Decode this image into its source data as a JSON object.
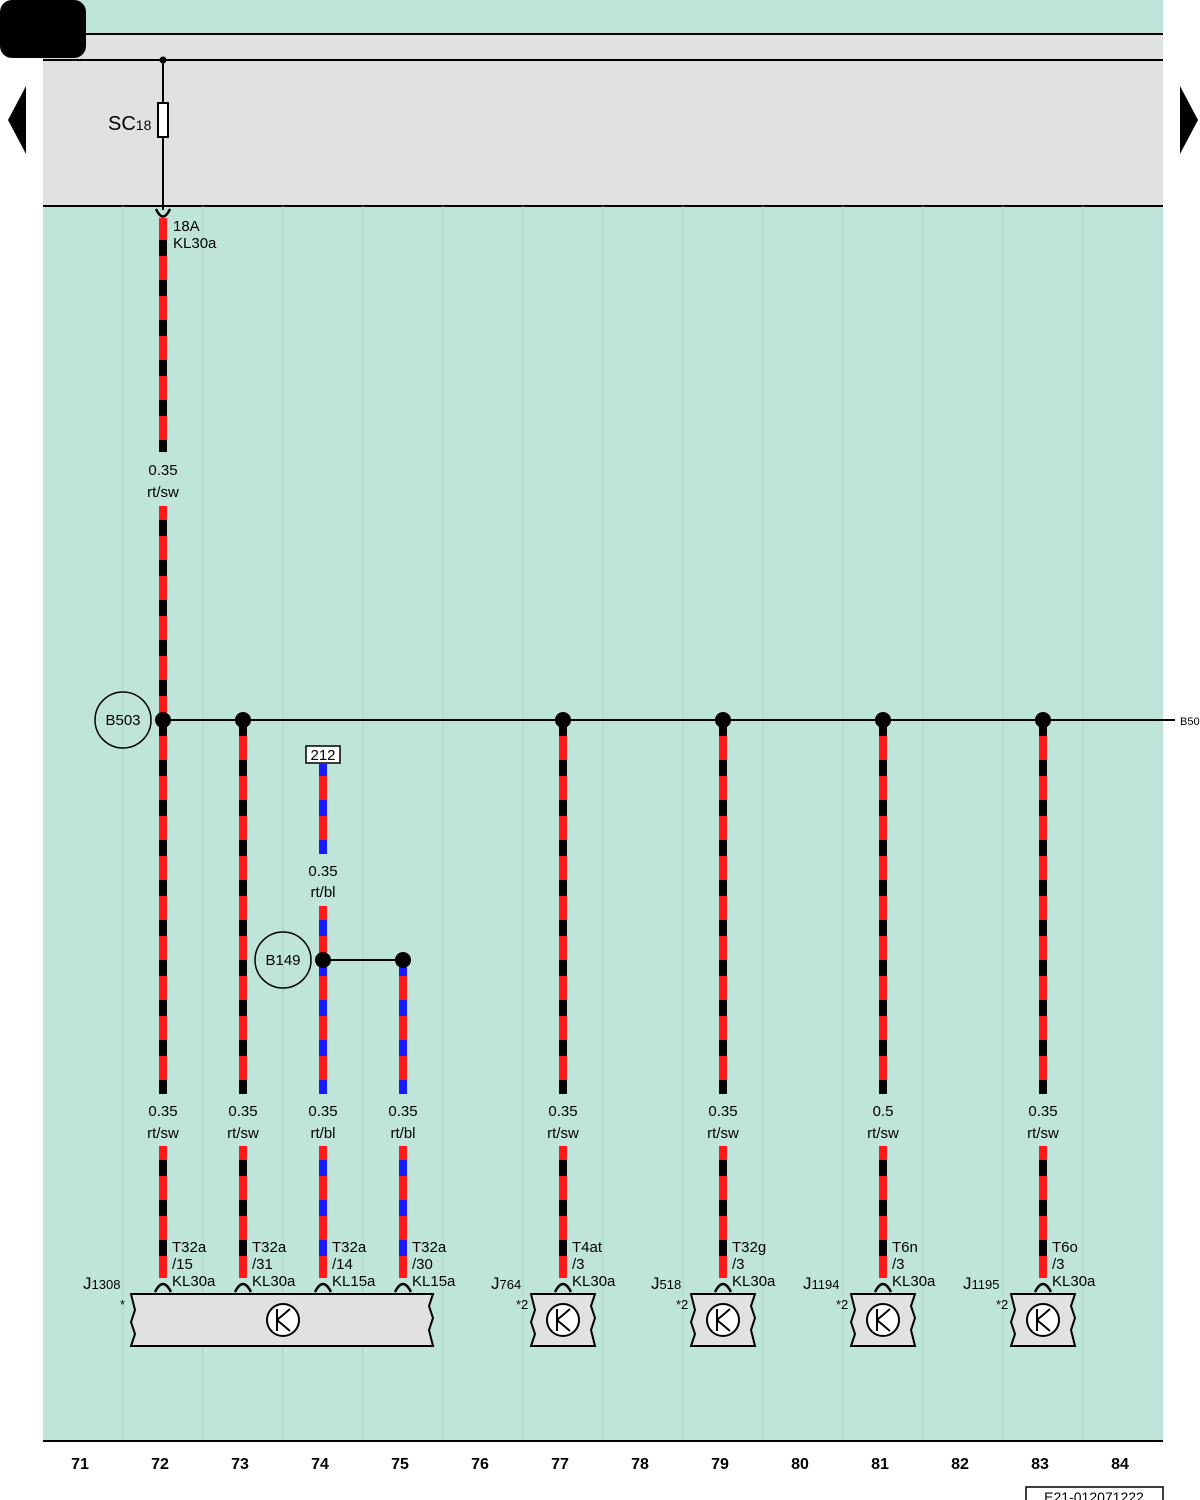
{
  "colors": {
    "background": "#bfe5da",
    "fuse_box": "#e1e1e1",
    "control_unit": "#e1e1e1",
    "wire_red": "#ff1a1a",
    "wire_black": "#000000",
    "wire_blue": "#1a1aff"
  },
  "nav": {
    "prev_icon": "triangle-left-icon",
    "next_icon": "triangle-right-icon"
  },
  "fuse": {
    "label": "SC",
    "sub": "18"
  },
  "top_terminal": {
    "pin": "18A",
    "signal": "KL30a"
  },
  "main_wire": {
    "size": "0.35",
    "color": "rt/sw"
  },
  "splice_b503": {
    "label": "B503",
    "continue_label": "B50"
  },
  "ref_box": {
    "label": "212"
  },
  "wire_212": {
    "size": "0.35",
    "color": "rt/bl"
  },
  "splice_b149": {
    "label": "B149"
  },
  "branches": [
    {
      "size": "0.35",
      "color": "rt/sw",
      "conn": "T32a",
      "pin": "/15",
      "signal": "KL30a"
    },
    {
      "size": "0.35",
      "color": "rt/sw",
      "conn": "T32a",
      "pin": "/31",
      "signal": "KL30a"
    },
    {
      "size": "0.35",
      "color": "rt/bl",
      "conn": "T32a",
      "pin": "/14",
      "signal": "KL15a"
    },
    {
      "size": "0.35",
      "color": "rt/bl",
      "conn": "T32a",
      "pin": "/30",
      "signal": "KL15a"
    },
    {
      "size": "0.35",
      "color": "rt/sw",
      "conn": "T4at",
      "pin": "/3",
      "signal": "KL30a"
    },
    {
      "size": "0.35",
      "color": "rt/sw",
      "conn": "T32g",
      "pin": "/3",
      "signal": "KL30a"
    },
    {
      "size": "0.5",
      "color": "rt/sw",
      "conn": "T6n",
      "pin": "/3",
      "signal": "KL30a"
    },
    {
      "size": "0.35",
      "color": "rt/sw",
      "conn": "T6o",
      "pin": "/3",
      "signal": "KL30a"
    }
  ],
  "components": [
    {
      "label": "J",
      "sub": "1308",
      "note": "*"
    },
    {
      "label": "J",
      "sub": "764",
      "note": "*2"
    },
    {
      "label": "J",
      "sub": "518",
      "note": "*2"
    },
    {
      "label": "J",
      "sub": "1194",
      "note": "*2"
    },
    {
      "label": "J",
      "sub": "1195",
      "note": "*2"
    }
  ],
  "columns": [
    "71",
    "72",
    "73",
    "74",
    "75",
    "76",
    "77",
    "78",
    "79",
    "80",
    "81",
    "82",
    "83",
    "84"
  ],
  "footer_id": "E21-012071222"
}
